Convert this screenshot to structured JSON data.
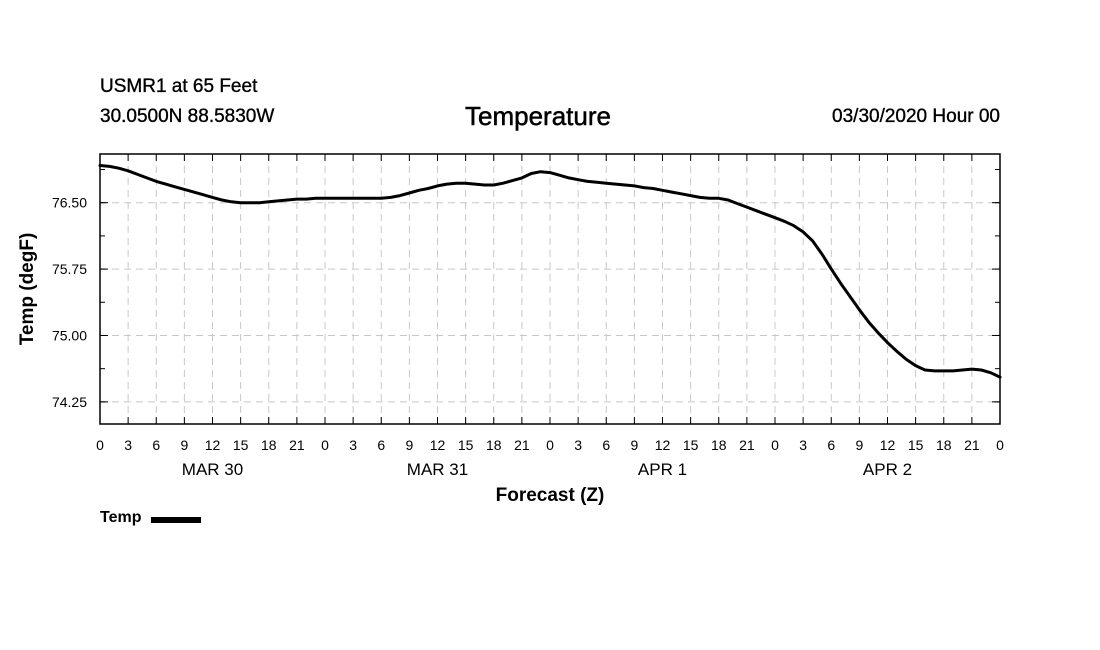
{
  "header": {
    "station": "USMR1 at 65 Feet",
    "coords": "30.0500N 88.5830W",
    "title": "Temperature",
    "issued": "03/30/2020 Hour 00"
  },
  "chart_data": {
    "type": "line",
    "title": "Temperature",
    "xlabel": "Forecast (Z)",
    "ylabel": "Temp (degF)",
    "xlim": [
      0,
      96
    ],
    "ylim": [
      74.0,
      77.05
    ],
    "y_ticks": [
      74.25,
      75.0,
      75.75,
      76.5
    ],
    "y_tick_labels": [
      "74.25",
      "75.00",
      "75.75",
      "76.50"
    ],
    "x_ticks": [
      0,
      3,
      6,
      9,
      12,
      15,
      18,
      21,
      24,
      27,
      30,
      33,
      36,
      39,
      42,
      45,
      48,
      51,
      54,
      57,
      60,
      63,
      66,
      69,
      72,
      75,
      78,
      81,
      84,
      87,
      90,
      93,
      96
    ],
    "x_tick_labels": [
      "0",
      "3",
      "6",
      "9",
      "12",
      "15",
      "18",
      "21",
      "0",
      "3",
      "6",
      "9",
      "12",
      "15",
      "18",
      "21",
      "0",
      "3",
      "6",
      "9",
      "12",
      "15",
      "18",
      "21",
      "0",
      "3",
      "6",
      "9",
      "12",
      "15",
      "18",
      "21",
      "0"
    ],
    "day_labels": [
      {
        "label": "MAR 30",
        "hour": 12
      },
      {
        "label": "MAR 31",
        "hour": 36
      },
      {
        "label": "APR 1",
        "hour": 60
      },
      {
        "label": "APR 2",
        "hour": 84
      }
    ],
    "grid": true,
    "series": [
      {
        "name": "Temp",
        "color": "#000000",
        "x": [
          0,
          1,
          2,
          3,
          4,
          5,
          6,
          7,
          8,
          9,
          10,
          11,
          12,
          13,
          14,
          15,
          16,
          17,
          18,
          19,
          20,
          21,
          22,
          23,
          24,
          25,
          26,
          27,
          28,
          29,
          30,
          31,
          32,
          33,
          34,
          35,
          36,
          37,
          38,
          39,
          40,
          41,
          42,
          43,
          44,
          45,
          46,
          47,
          48,
          49,
          50,
          51,
          52,
          53,
          54,
          55,
          56,
          57,
          58,
          59,
          60,
          61,
          62,
          63,
          64,
          65,
          66,
          67,
          68,
          69,
          70,
          71,
          72,
          73,
          74,
          75,
          76,
          77,
          78,
          79,
          80,
          81,
          82,
          83,
          84,
          85,
          86,
          87,
          88,
          89,
          90,
          91,
          92,
          93,
          94,
          95,
          96
        ],
        "values": [
          76.92,
          76.91,
          76.89,
          76.86,
          76.82,
          76.78,
          76.74,
          76.71,
          76.68,
          76.65,
          76.62,
          76.59,
          76.56,
          76.53,
          76.51,
          76.5,
          76.5,
          76.5,
          76.51,
          76.52,
          76.53,
          76.54,
          76.54,
          76.55,
          76.55,
          76.55,
          76.55,
          76.55,
          76.55,
          76.55,
          76.55,
          76.56,
          76.58,
          76.61,
          76.64,
          76.66,
          76.69,
          76.71,
          76.72,
          76.72,
          76.71,
          76.7,
          76.7,
          76.72,
          76.75,
          76.78,
          76.83,
          76.85,
          76.84,
          76.81,
          76.78,
          76.76,
          76.74,
          76.73,
          76.72,
          76.71,
          76.7,
          76.69,
          76.67,
          76.66,
          76.64,
          76.62,
          76.6,
          76.58,
          76.56,
          76.55,
          76.55,
          76.53,
          76.49,
          76.45,
          76.41,
          76.37,
          76.33,
          76.29,
          76.24,
          76.17,
          76.07,
          75.92,
          75.75,
          75.59,
          75.44,
          75.29,
          75.15,
          75.03,
          74.92,
          74.82,
          74.73,
          74.66,
          74.61,
          74.6,
          74.6,
          74.6,
          74.61,
          74.62,
          74.61,
          74.58,
          74.53
        ]
      }
    ],
    "legend": {
      "label": "Temp",
      "placement": "bottom-left"
    }
  }
}
